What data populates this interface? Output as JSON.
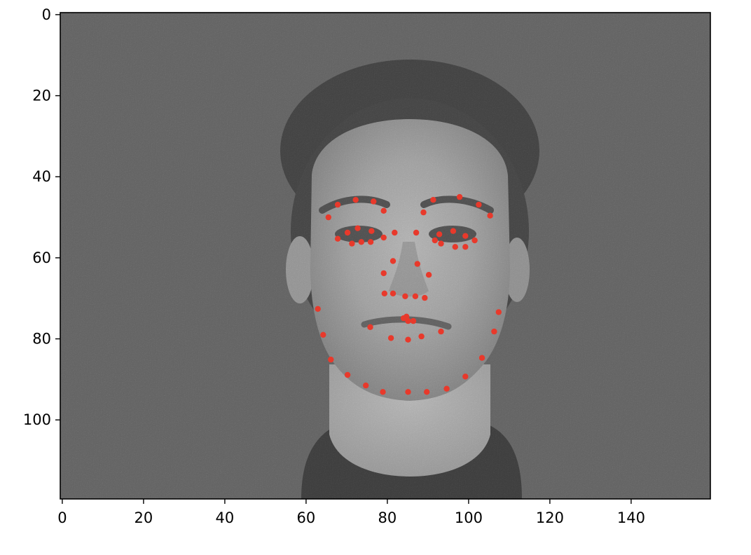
{
  "figure": {
    "image_kind": "grayscale face photograph with noise",
    "marker_color": "#e8392b",
    "axis_color": "#000000"
  },
  "chart_data": {
    "type": "scatter",
    "title": "",
    "xlabel": "",
    "ylabel": "",
    "xlim": [
      -0.5,
      159.5
    ],
    "ylim": [
      119.5,
      -0.5
    ],
    "y_axis_inverted": true,
    "grid": false,
    "legend": "none",
    "x_ticks": [
      0,
      20,
      40,
      60,
      80,
      100,
      120,
      140
    ],
    "y_ticks": [
      0,
      20,
      40,
      60,
      80,
      100
    ],
    "x_tick_labels": [
      "0",
      "20",
      "40",
      "60",
      "80",
      "100",
      "120",
      "140"
    ],
    "y_tick_labels": [
      "0",
      "20",
      "40",
      "60",
      "80",
      "100"
    ],
    "series": [
      {
        "points": [
          [
            62.9,
            72.6
          ],
          [
            64.2,
            79.0
          ],
          [
            66.1,
            85.1
          ],
          [
            70.2,
            88.9
          ],
          [
            74.7,
            91.5
          ],
          [
            78.9,
            93.1
          ],
          [
            85.1,
            93.1
          ],
          [
            89.7,
            93.1
          ],
          [
            94.6,
            92.3
          ],
          [
            99.2,
            89.3
          ],
          [
            103.3,
            84.7
          ],
          [
            106.3,
            78.2
          ],
          [
            107.4,
            73.4
          ],
          [
            65.5,
            50.0
          ],
          [
            67.8,
            46.9
          ],
          [
            72.2,
            45.7
          ],
          [
            76.6,
            46.1
          ],
          [
            79.1,
            48.4
          ],
          [
            91.3,
            45.7
          ],
          [
            97.8,
            45.0
          ],
          [
            102.5,
            46.9
          ],
          [
            105.3,
            49.6
          ],
          [
            88.9,
            48.8
          ],
          [
            81.8,
            53.8
          ],
          [
            87.1,
            53.8
          ],
          [
            67.8,
            55.3
          ],
          [
            70.2,
            53.8
          ],
          [
            72.7,
            52.7
          ],
          [
            76.1,
            53.4
          ],
          [
            79.1,
            55.0
          ],
          [
            71.3,
            56.5
          ],
          [
            73.6,
            56.1
          ],
          [
            75.9,
            56.1
          ],
          [
            92.8,
            54.2
          ],
          [
            96.2,
            53.4
          ],
          [
            99.2,
            54.6
          ],
          [
            101.5,
            55.7
          ],
          [
            91.7,
            55.7
          ],
          [
            93.2,
            56.5
          ],
          [
            96.7,
            57.3
          ],
          [
            99.2,
            57.3
          ],
          [
            81.4,
            60.8
          ],
          [
            79.1,
            63.8
          ],
          [
            87.4,
            61.5
          ],
          [
            90.2,
            64.2
          ],
          [
            79.3,
            68.8
          ],
          [
            81.4,
            68.8
          ],
          [
            84.4,
            69.5
          ],
          [
            86.9,
            69.5
          ],
          [
            89.2,
            69.9
          ],
          [
            75.8,
            77.1
          ],
          [
            84.0,
            74.9
          ],
          [
            85.1,
            75.6
          ],
          [
            86.4,
            75.6
          ],
          [
            80.9,
            79.8
          ],
          [
            85.1,
            80.2
          ],
          [
            88.4,
            79.4
          ],
          [
            93.2,
            78.2
          ],
          [
            84.7,
            74.5
          ]
        ]
      }
    ]
  }
}
